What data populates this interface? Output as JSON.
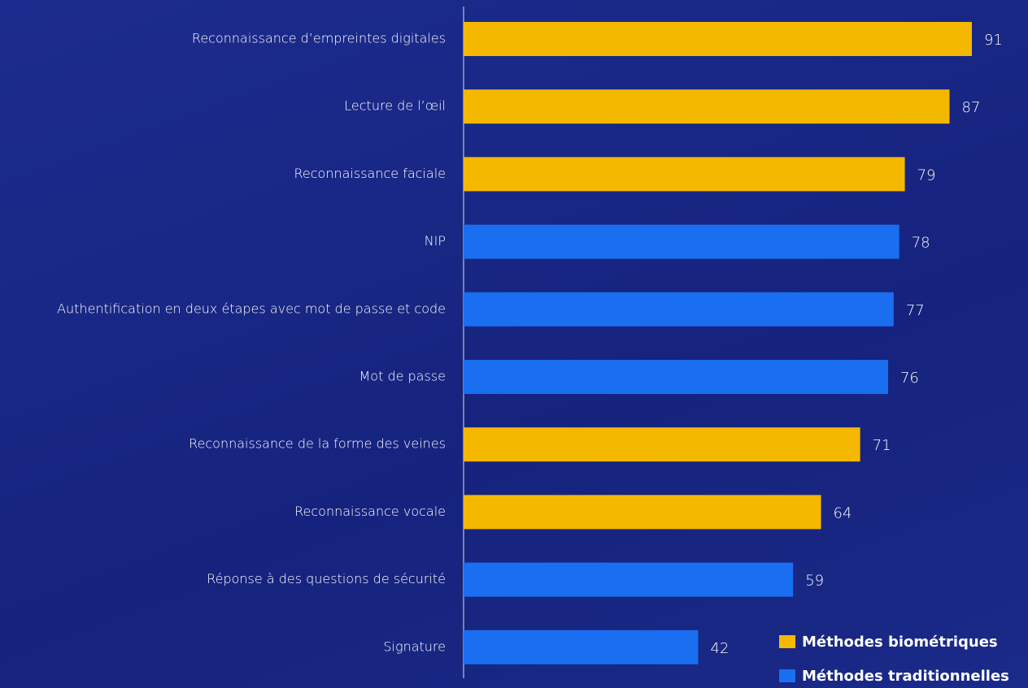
{
  "chart_data": {
    "type": "bar",
    "orientation": "horizontal",
    "categories": [
      "Reconnaissance d’empreintes digitales",
      "Lecture de l’œil",
      "Reconnaissance faciale",
      "NIP",
      "Authentification en deux étapes avec mot de passe et code",
      "Mot de passe",
      "Reconnaissance de la forme des veines",
      "Reconnaissance vocale",
      "Réponse à des questions de sécurité",
      "Signature"
    ],
    "series": [
      {
        "name": "Méthodes biométriques",
        "color": "#f5b800",
        "values": [
          91,
          87,
          79,
          null,
          null,
          null,
          71,
          64,
          null,
          null
        ]
      },
      {
        "name": "Méthodes traditionnelles",
        "color": "#1a6ef0",
        "values": [
          null,
          null,
          null,
          78,
          77,
          76,
          null,
          null,
          59,
          42
        ]
      }
    ],
    "xlim": [
      0,
      100
    ],
    "legend": "bottom-right"
  }
}
